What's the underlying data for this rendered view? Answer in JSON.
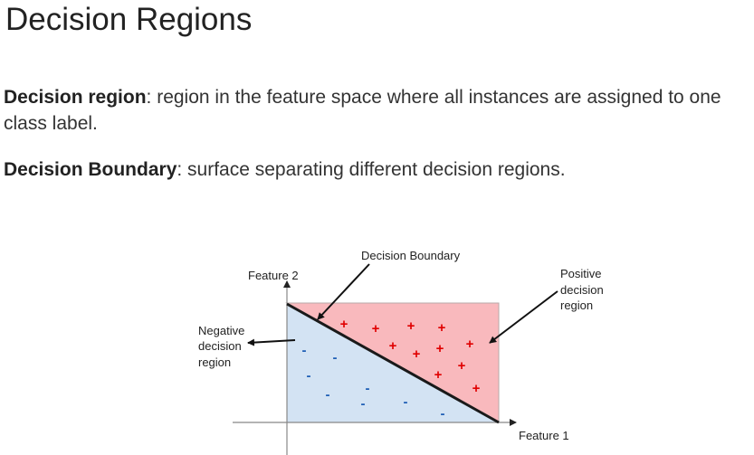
{
  "page": {
    "title": "Decision Regions",
    "definitions": [
      {
        "term": "Decision region",
        "text": ": region in the feature space where all instances are assigned to one class label."
      },
      {
        "term": "Decision Boundary",
        "text": ": surface separating different decision regions."
      }
    ]
  },
  "diagram": {
    "labels": {
      "boundary": "Decision Boundary",
      "y_axis": "Feature 2",
      "x_axis": "Feature 1",
      "positive": [
        "Positive",
        "decision",
        "region"
      ],
      "negative": [
        "Negative",
        "decision",
        "region"
      ]
    },
    "positive_symbol": "+",
    "negative_symbol": "-",
    "colors": {
      "positive_region": "#f9b9bd",
      "negative_region": "#d3e3f3",
      "plus_marker": "#e00000",
      "minus_marker": "#1f5fb5"
    }
  }
}
